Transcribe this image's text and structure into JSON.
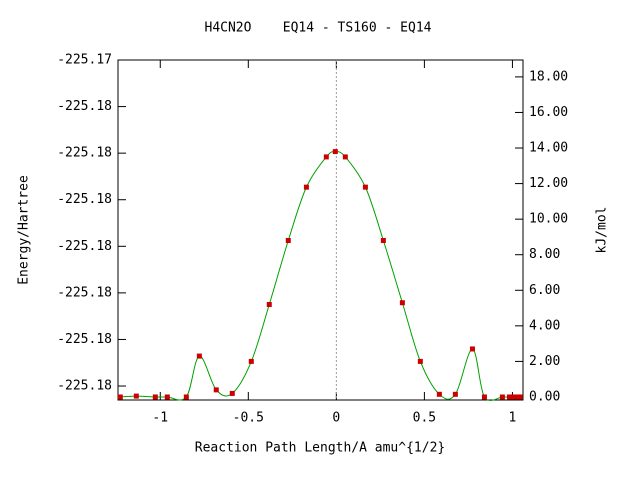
{
  "chart_data": {
    "type": "line",
    "title": "H4CN2O    EQ14 - TS160 - EQ14",
    "xlabel": "Reaction Path Length/A amu^{1/2}",
    "ylabel": "Energy/Hartree",
    "y2label": "kJ/mol",
    "x": [
      -1.227,
      -1.136,
      -1.028,
      -0.96,
      -0.852,
      -0.778,
      -0.682,
      -0.591,
      -0.483,
      -0.381,
      -0.273,
      -0.17,
      -0.057,
      -0.006,
      0.051,
      0.165,
      0.267,
      0.375,
      0.477,
      0.585,
      0.676,
      0.773,
      0.841,
      0.943,
      0.983,
      1.0,
      1.017,
      1.034,
      1.045
    ],
    "series": [
      {
        "color": "#00a000",
        "marker_color": "#cc0000",
        "axis": "y2",
        "values": [
          0,
          0.05,
          0,
          0,
          0,
          2.3,
          0.4,
          0.2,
          2.0,
          5.2,
          8.8,
          11.8,
          13.5,
          13.8,
          13.5,
          11.8,
          8.8,
          5.3,
          2.0,
          0.15,
          0.15,
          2.7,
          0,
          0,
          0,
          0,
          0,
          0,
          0
        ]
      }
    ],
    "xlim": [
      -1.24,
      1.06
    ],
    "xticks": [
      -1,
      -0.5,
      0,
      0.5,
      1
    ],
    "ylim": [
      -225.1823,
      -225.175
    ],
    "yticks": [
      {
        "value": -225.182,
        "label": "-225.18"
      },
      {
        "value": -225.181,
        "label": "-225.18"
      },
      {
        "value": -225.18,
        "label": "-225.18"
      },
      {
        "value": -225.179,
        "label": "-225.18"
      },
      {
        "value": -225.178,
        "label": "-225.18"
      },
      {
        "value": -225.177,
        "label": "-225.18"
      },
      {
        "value": -225.176,
        "label": "-225.18"
      },
      {
        "value": -225.175,
        "label": "-225.17"
      }
    ],
    "y2lim": [
      -0.17,
      18.95
    ],
    "y2ticks": [
      {
        "value": 0,
        "label": "0.00"
      },
      {
        "value": 2,
        "label": "2.00"
      },
      {
        "value": 4,
        "label": "4.00"
      },
      {
        "value": 6,
        "label": "6.00"
      },
      {
        "value": 8,
        "label": "8.00"
      },
      {
        "value": 10,
        "label": "10.00"
      },
      {
        "value": 12,
        "label": "12.00"
      },
      {
        "value": 14,
        "label": "14.00"
      },
      {
        "value": 16,
        "label": "16.00"
      },
      {
        "value": 18,
        "label": "18.00"
      }
    ],
    "grid": false
  }
}
